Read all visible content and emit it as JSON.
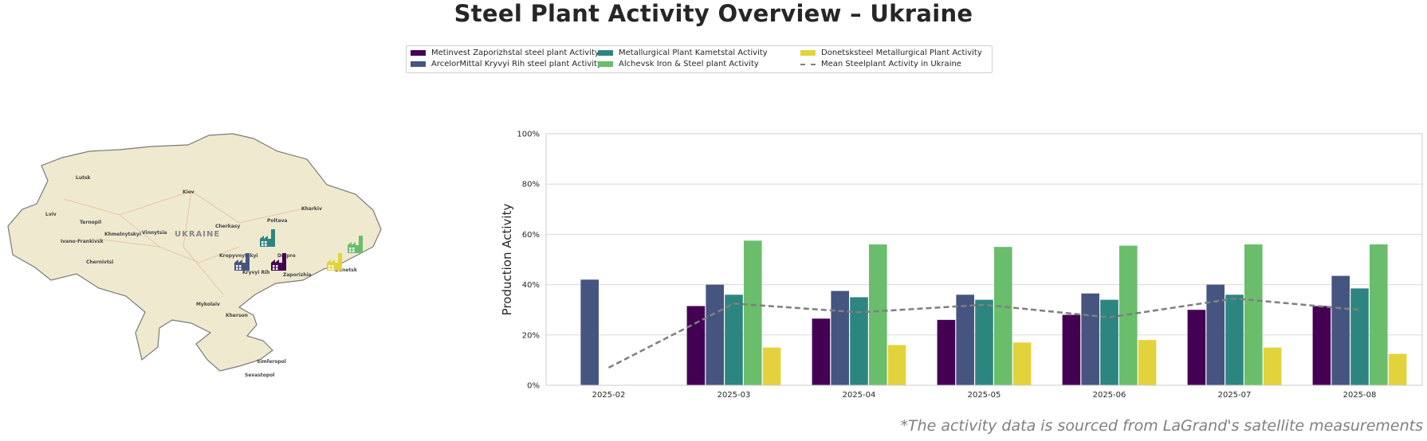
{
  "title": "Steel Plant Activity Overview – Ukraine",
  "footnote": "*The activity data is sourced from LaGrand's satellite measurements",
  "legend": [
    {
      "label": "Metinvest Zaporizhstal steel plant Activity",
      "color": "#440154",
      "kind": "bar"
    },
    {
      "label": "ArcelorMittal Kryvyi Rih steel plant Activity",
      "color": "#46557f",
      "kind": "bar"
    },
    {
      "label": "Metallurgical Plant Kametstal Activity",
      "color": "#2d8580",
      "kind": "bar"
    },
    {
      "label": "Alchevsk Iron & Steel plant Activity",
      "color": "#6abd6b",
      "kind": "bar"
    },
    {
      "label": "Donetsksteel Metallurgical Plant Activity",
      "color": "#e2d33c",
      "kind": "bar"
    },
    {
      "label": "Mean Steelplant Activity in Ukraine",
      "color": "#7f7f7f",
      "kind": "line"
    }
  ],
  "map": {
    "country_label": "UKRAINE",
    "cities": [
      "Lutsk",
      "Kiev",
      "Kharkiv",
      "Lviv",
      "Ternopil",
      "Poltava",
      "Cherkasy",
      "Khmelnytskyi",
      "Vinnytsia",
      "Ivano-Frankivsk",
      "Kropyvnytskyi",
      "Dnipro",
      "Chernivtsi",
      "Kryvyi Rih",
      "Zaporizhia",
      "Donetsk",
      "Mykolaiv",
      "Kherson",
      "Simferopol",
      "Sevastopol"
    ],
    "plant_markers": [
      {
        "plant": "Metinvest Zaporizhstal",
        "color": "#440154"
      },
      {
        "plant": "ArcelorMittal Kryvyi Rih",
        "color": "#46557f"
      },
      {
        "plant": "Metallurgical Plant Kametstal",
        "color": "#2d8580"
      },
      {
        "plant": "Alchevsk Iron & Steel",
        "color": "#6abd6b"
      },
      {
        "plant": "Donetsksteel Metallurgical Plant",
        "color": "#e2d33c"
      }
    ]
  },
  "chart_data": {
    "type": "bar",
    "categories": [
      "2025-02",
      "2025-03",
      "2025-04",
      "2025-05",
      "2025-06",
      "2025-07",
      "2025-08"
    ],
    "ylabel": "Production Activity",
    "xlabel": "",
    "ylim": [
      0,
      100
    ],
    "y_ticks": [
      "0%",
      "20%",
      "40%",
      "60%",
      "80%",
      "100%"
    ],
    "grid": "horizontal",
    "legend_position": "top-center",
    "series": [
      {
        "name": "Metinvest Zaporizhstal steel plant Activity",
        "color": "#440154",
        "values": [
          null,
          31.5,
          26.5,
          26,
          28,
          30,
          31.5
        ]
      },
      {
        "name": "ArcelorMittal Kryvyi Rih steel plant Activity",
        "color": "#46557f",
        "values": [
          42,
          40,
          37.5,
          36,
          36.5,
          40,
          43.5
        ]
      },
      {
        "name": "Metallurgical Plant Kametstal Activity",
        "color": "#2d8580",
        "values": [
          null,
          36,
          35,
          34,
          34,
          36,
          38.5
        ]
      },
      {
        "name": "Alchevsk Iron & Steel plant Activity",
        "color": "#6abd6b",
        "values": [
          null,
          57.5,
          56,
          55,
          55.5,
          56,
          56
        ]
      },
      {
        "name": "Donetsksteel Metallurgical Plant Activity",
        "color": "#e2d33c",
        "values": [
          null,
          15,
          16,
          17,
          18,
          15,
          12.5
        ]
      }
    ],
    "mean_line": {
      "name": "Mean Steelplant Activity in Ukraine",
      "color": "#7f7f7f",
      "values": [
        7,
        32.5,
        29,
        32,
        27,
        34.5,
        30
      ]
    }
  }
}
